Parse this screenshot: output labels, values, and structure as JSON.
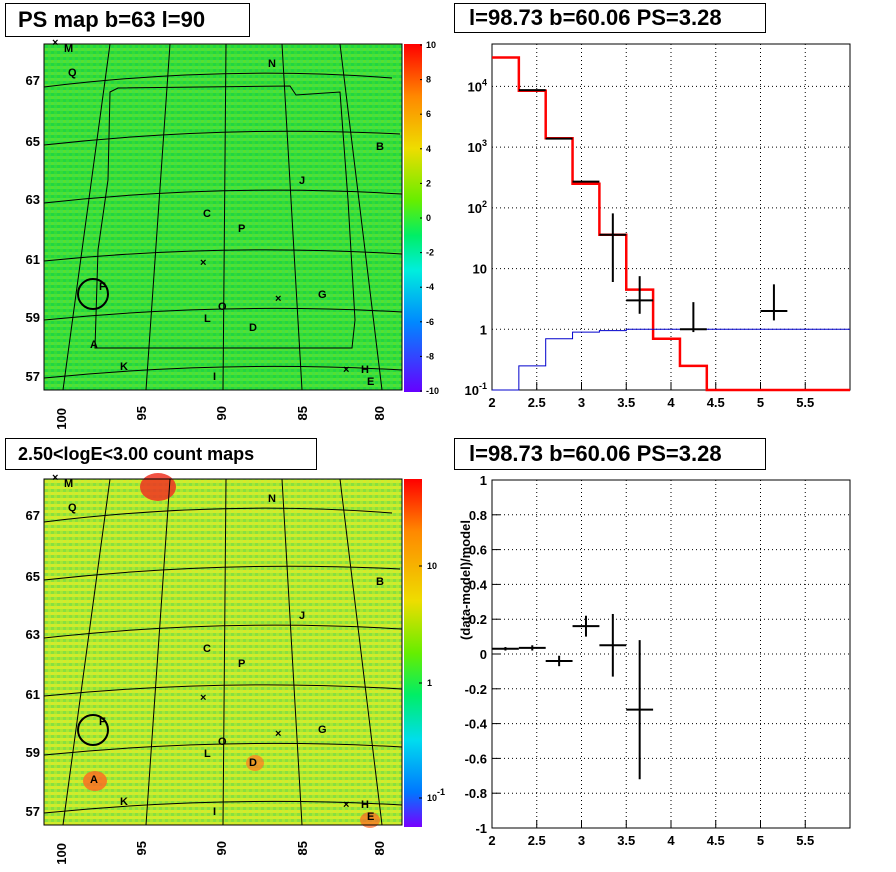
{
  "panels": {
    "p1": {
      "title": "PS map b=63 l=90"
    },
    "p2": {
      "title": "l=98.73 b=60.06 PS=3.28"
    },
    "p3": {
      "title": "2.50<logE<3.00 count maps"
    },
    "p4": {
      "title": "l=98.73 b=60.06 PS=3.28"
    }
  },
  "colors": {
    "field_green": "#33dd33",
    "field_yellow": "#bbee33",
    "red": "#ff0000",
    "blue": "#0000cc"
  },
  "map": {
    "lat_labels": [
      "67",
      "65",
      "63",
      "61",
      "59",
      "57"
    ],
    "lon_labels": [
      "100",
      "95",
      "90",
      "85",
      "80"
    ],
    "sources": [
      {
        "name": "M"
      },
      {
        "name": "Q"
      },
      {
        "name": "N"
      },
      {
        "name": "B"
      },
      {
        "name": "J"
      },
      {
        "name": "C"
      },
      {
        "name": "P"
      },
      {
        "name": "F"
      },
      {
        "name": "G"
      },
      {
        "name": "O"
      },
      {
        "name": "L"
      },
      {
        "name": "D"
      },
      {
        "name": "A"
      },
      {
        "name": "K"
      },
      {
        "name": "I"
      },
      {
        "name": "H"
      },
      {
        "name": "E"
      }
    ],
    "ps_colorbar": [
      "10",
      "8",
      "6",
      "4",
      "2",
      "0",
      "-2",
      "-4",
      "-6",
      "-8",
      "-10"
    ],
    "count_colorbar": [
      "10",
      "1",
      "10-1"
    ]
  },
  "chart_data": [
    {
      "type": "line",
      "title": "l=98.73 b=60.06 PS=3.28",
      "xlabel": "",
      "ylabel": "",
      "log_y": true,
      "xlim": [
        2,
        6
      ],
      "ylim": [
        0.1,
        50000
      ],
      "x_ticks": [
        "2",
        "2.5",
        "3",
        "3.5",
        "4",
        "4.5",
        "5",
        "5.5"
      ],
      "y_ticks": [
        "10-1",
        "1",
        "10",
        "102",
        "103",
        "104"
      ],
      "grid": true,
      "series": [
        {
          "name": "",
          "color": "red",
          "bin_edges": [
            2.0,
            2.3,
            2.6,
            2.9,
            3.2,
            3.5,
            3.8,
            4.1,
            4.4,
            6.0
          ],
          "values": [
            30000,
            8500,
            1400,
            250,
            36,
            4.5,
            0.7,
            0.25,
            0.1
          ]
        },
        {
          "name": "",
          "color": "blue",
          "bin_edges": [
            2.0,
            2.3,
            2.6,
            2.9,
            3.2,
            3.5,
            3.8,
            4.1,
            4.4,
            6.0
          ],
          "values": [
            0.1,
            0.25,
            0.7,
            0.9,
            0.95,
            1.0,
            1.0,
            1.0,
            1.0
          ]
        },
        {
          "name": "",
          "color": "black",
          "points": [
            {
              "x": 2.45,
              "y": 8700,
              "xerr": 0.15
            },
            {
              "x": 2.75,
              "y": 1380,
              "xerr": 0.15
            },
            {
              "x": 3.05,
              "y": 270,
              "xerr": 0.15
            },
            {
              "x": 3.35,
              "y": 36,
              "xerr": 0.15,
              "yerr": [
                30,
                45
              ]
            },
            {
              "x": 3.65,
              "y": 3,
              "xerr": 0.15,
              "yerr": [
                1.2,
                4.5
              ]
            },
            {
              "x": 4.25,
              "y": 1,
              "xerr": 0.15,
              "yerr": [
                0.1,
                1.8
              ]
            },
            {
              "x": 5.15,
              "y": 2,
              "xerr": 0.15,
              "yerr": [
                0.6,
                3.5
              ]
            }
          ]
        }
      ]
    },
    {
      "type": "scatter",
      "title": "l=98.73 b=60.06 PS=3.28",
      "xlabel": "",
      "ylabel": "(data-model)/model",
      "xlim": [
        2,
        6
      ],
      "ylim": [
        -1,
        1
      ],
      "x_ticks": [
        "2",
        "2.5",
        "3",
        "3.5",
        "4",
        "4.5",
        "5",
        "5.5"
      ],
      "y_ticks": [
        "-1",
        "-0.8",
        "-0.6",
        "-0.4",
        "-0.2",
        "0",
        "0.2",
        "0.4",
        "0.6",
        "0.8",
        "1"
      ],
      "grid": true,
      "series": [
        {
          "name": "",
          "color": "black",
          "points": [
            {
              "x": 2.15,
              "y": 0.03,
              "xerr": 0.15,
              "yerr": 0.01
            },
            {
              "x": 2.45,
              "y": 0.035,
              "xerr": 0.15,
              "yerr": 0.015
            },
            {
              "x": 2.75,
              "y": -0.04,
              "xerr": 0.15,
              "yerr": 0.03
            },
            {
              "x": 3.05,
              "y": 0.16,
              "xerr": 0.15,
              "yerr": 0.06
            },
            {
              "x": 3.35,
              "y": 0.05,
              "xerr": 0.15,
              "yerr": 0.18
            },
            {
              "x": 3.65,
              "y": -0.32,
              "xerr": 0.15,
              "yerr": 0.4
            }
          ]
        }
      ]
    }
  ]
}
